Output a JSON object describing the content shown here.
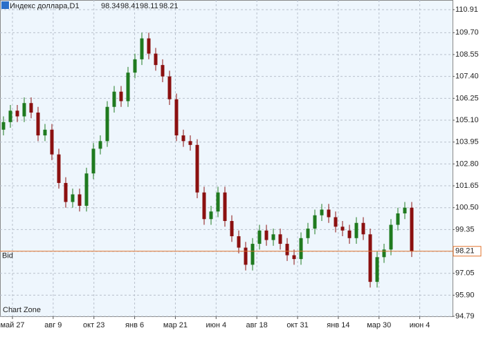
{
  "chart_data": {
    "type": "candlestick",
    "title": "Индекс доллара,D1",
    "header_values": [
      98.34,
      98.41,
      98.11,
      98.21
    ],
    "watermark": "Chart Zone",
    "bid_label": "Bid",
    "bid": 98.21,
    "x_labels": [
      "май 27",
      "авг 9",
      "окт 23",
      "янв 6",
      "мар 21",
      "июн 4",
      "авг 18",
      "окт 31",
      "янв 14",
      "мар 30",
      "июн 4"
    ],
    "up_color": "#1f7a1f",
    "down_color": "#8b1010",
    "grid": true,
    "ylim": [
      94.79,
      110.91
    ],
    "yticks": [
      110.91,
      {
        "value": 109.7,
        "label": "109.70"
      },
      108.55,
      {
        "value": 107.4,
        "label": "107.40"
      },
      106.25,
      {
        "value": 105.1,
        "label": "105.10"
      },
      103.95,
      {
        "value": 102.8,
        "label": "102.80"
      },
      101.65,
      {
        "value": 100.5,
        "label": "100.50"
      },
      99.35,
      {
        "value": 98.2,
        "label": "98.20"
      },
      97.05,
      {
        "value": 95.9,
        "label": "95.90"
      },
      94.79
    ],
    "open": [
      104.6,
      105.0,
      105.6,
      105.3,
      106.0,
      105.5,
      104.3,
      104.6,
      103.3,
      101.8,
      100.8,
      101.2,
      100.6,
      102.3,
      103.6,
      104.0,
      105.8,
      106.6,
      106.1,
      107.6,
      108.3,
      109.4,
      108.6,
      108.0,
      107.4,
      106.2,
      104.3,
      104.0,
      103.8,
      101.3,
      99.9,
      100.3,
      101.3,
      99.8,
      99.0,
      98.4,
      97.5,
      98.6,
      99.3,
      98.8,
      99.1,
      98.6,
      98.0,
      97.8,
      98.9,
      99.4,
      100.1,
      100.4,
      100.0,
      99.5,
      99.3,
      98.9,
      99.7,
      99.1,
      96.6,
      97.9,
      98.3,
      99.6,
      100.2,
      100.5
    ],
    "high": [
      105.3,
      105.9,
      105.9,
      106.3,
      106.3,
      105.8,
      104.9,
      104.9,
      103.6,
      102.1,
      101.5,
      101.5,
      102.6,
      103.9,
      104.3,
      106.1,
      106.9,
      106.9,
      107.9,
      108.6,
      109.7,
      109.7,
      108.9,
      108.3,
      107.7,
      106.5,
      104.6,
      104.3,
      104.1,
      101.6,
      100.6,
      101.6,
      101.6,
      100.1,
      99.3,
      98.7,
      98.9,
      99.6,
      99.6,
      99.4,
      99.4,
      98.9,
      98.3,
      99.2,
      99.7,
      100.4,
      100.7,
      100.7,
      100.3,
      99.8,
      99.6,
      100.0,
      100.0,
      99.4,
      98.2,
      98.6,
      99.9,
      100.5,
      100.8,
      100.8
    ],
    "low": [
      104.3,
      104.7,
      105.0,
      105.0,
      105.2,
      104.0,
      104.0,
      103.0,
      101.5,
      100.5,
      100.5,
      100.3,
      100.3,
      102.0,
      103.3,
      103.7,
      105.5,
      105.8,
      105.8,
      107.3,
      108.0,
      108.3,
      107.7,
      107.1,
      105.9,
      104.0,
      103.7,
      103.5,
      101.0,
      99.6,
      99.6,
      100.0,
      99.5,
      98.7,
      98.1,
      97.2,
      97.2,
      98.3,
      98.5,
      98.5,
      98.3,
      97.7,
      97.5,
      97.5,
      98.6,
      99.1,
      99.8,
      99.7,
      99.2,
      99.0,
      98.6,
      98.6,
      98.8,
      96.3,
      96.3,
      97.6,
      98.0,
      99.3,
      99.9,
      97.91
    ],
    "close": [
      105.0,
      105.6,
      105.3,
      106.0,
      105.5,
      104.3,
      104.6,
      103.3,
      101.8,
      100.8,
      101.2,
      100.6,
      102.3,
      103.6,
      104.0,
      105.8,
      106.6,
      106.1,
      107.6,
      108.3,
      109.4,
      108.6,
      108.0,
      107.4,
      106.2,
      104.3,
      104.0,
      103.8,
      101.3,
      99.9,
      100.3,
      101.3,
      99.8,
      99.0,
      98.4,
      97.5,
      98.6,
      99.3,
      98.8,
      99.1,
      98.6,
      98.0,
      97.8,
      98.9,
      99.4,
      100.1,
      100.4,
      100.0,
      99.5,
      99.3,
      98.9,
      99.7,
      99.1,
      96.6,
      97.9,
      98.3,
      99.6,
      100.2,
      100.5,
      98.21
    ]
  }
}
